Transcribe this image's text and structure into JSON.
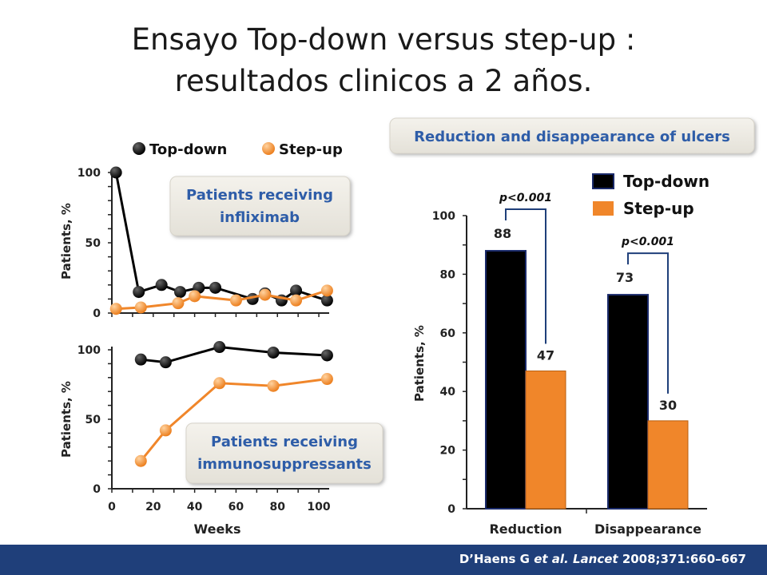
{
  "title": {
    "line1": "Ensayo Top-down versus step-up :",
    "line2": "resultados clinicos a 2 años."
  },
  "colors": {
    "top_down": "#000000",
    "step_up": "#f0862a",
    "footer": "#1f3f7a",
    "box_text": "#2e5da8"
  },
  "legend_left": {
    "top_down": "Top-down",
    "step_up": "Step-up"
  },
  "legend_right": {
    "top_down": "Top-down",
    "step_up": "Step-up"
  },
  "right_header": "Reduction and disappearance of ulcers",
  "chart_data": [
    {
      "type": "line",
      "annotation": [
        "Patients receiving",
        "infliximab"
      ],
      "ylabel": "Patients, %",
      "ylim": [
        0,
        100
      ],
      "yticks": [
        "0",
        "50",
        "100"
      ],
      "xlim": [
        0,
        105
      ],
      "series": [
        {
          "name": "Top-down",
          "x": [
            2,
            13,
            24,
            33,
            42,
            50,
            68,
            74,
            82,
            89,
            104
          ],
          "y": [
            100,
            15,
            20,
            15,
            18,
            18,
            10,
            14,
            9,
            16,
            9
          ]
        },
        {
          "name": "Step-up",
          "x": [
            2,
            14,
            32,
            40,
            60,
            74,
            89,
            104
          ],
          "y": [
            3,
            4,
            7,
            12,
            9,
            13,
            9,
            16
          ]
        }
      ]
    },
    {
      "type": "line",
      "annotation": [
        "Patients receiving",
        "immunosuppressants"
      ],
      "ylabel": "Patients, %",
      "xlabel": "Weeks",
      "xticks": [
        "0",
        "20",
        "40",
        "60",
        "80",
        "100"
      ],
      "ylim": [
        0,
        100
      ],
      "yticks": [
        "0",
        "50",
        "100"
      ],
      "xlim": [
        0,
        105
      ],
      "series": [
        {
          "name": "Top-down",
          "x": [
            14,
            26,
            52,
            78,
            104
          ],
          "y": [
            93,
            91,
            102,
            98,
            96
          ]
        },
        {
          "name": "Step-up",
          "x": [
            14,
            26,
            52,
            78,
            104
          ],
          "y": [
            20,
            42,
            76,
            74,
            79
          ]
        }
      ]
    },
    {
      "type": "bar",
      "categories": [
        "Reduction",
        "Disappearance"
      ],
      "ylabel": "Patients, %",
      "ylim": [
        0,
        100
      ],
      "yticks": [
        "0",
        "20",
        "40",
        "60",
        "80",
        "100"
      ],
      "series": [
        {
          "name": "Top-down",
          "values": [
            88,
            73
          ],
          "labels": [
            "88",
            "73"
          ]
        },
        {
          "name": "Step-up",
          "values": [
            47,
            30
          ],
          "labels": [
            "47",
            "30"
          ]
        }
      ],
      "pvalues": [
        "p<0.001",
        "p<0.001"
      ]
    }
  ],
  "citation": {
    "prefix": "D’Haens G ",
    "etal": "et al.",
    "journal": "Lancet",
    "rest": "2008;371:660–667"
  }
}
